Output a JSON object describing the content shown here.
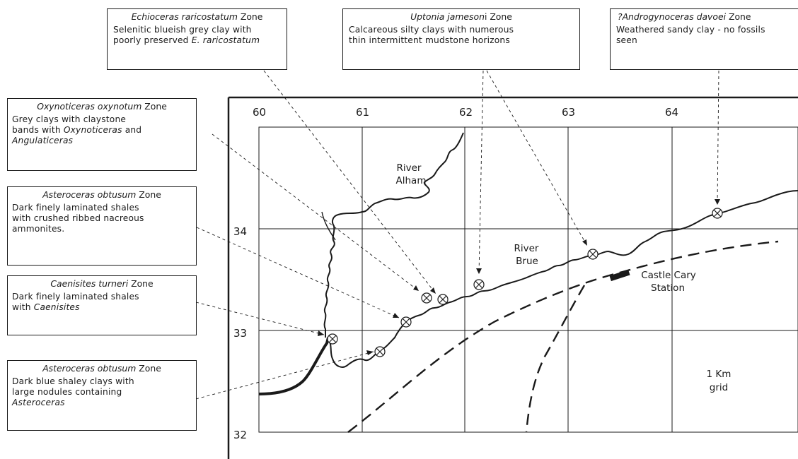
{
  "zones": {
    "raricostatum": {
      "genus": "Echioceras raricostatum",
      "suffix": " Zone",
      "desc_lines": [
        "Selenitic blueish grey clay with",
        "poorly preserved "
      ],
      "desc_italic": "E. raricostatum"
    },
    "jamesoni": {
      "genus": "Uptonia jameson",
      "suffix": "i Zone",
      "desc_lines": [
        "Calcareous silty clays with numerous",
        "thin intermittent mudstone horizons"
      ]
    },
    "davoei": {
      "genus": "?Androgynoceras davoei",
      "suffix": " Zone",
      "desc_lines": [
        "Weathered sandy clay - no fossils",
        "seen"
      ]
    },
    "oxynotum": {
      "genus": "Oxynoticeras oxynotum",
      "suffix": " Zone",
      "desc_lines": [
        "Grey clays with claystone",
        "bands with "
      ],
      "desc_italic1": "Oxynoticeras",
      "desc_mid": " and",
      "desc_italic2": "Angulaticeras"
    },
    "obtusum_upper": {
      "genus": "Asteroceras obtusum",
      "suffix": " Zone",
      "desc_lines": [
        "Dark finely laminated shales",
        "with crushed ribbed nacreous",
        "ammonites."
      ]
    },
    "turneri": {
      "genus": "Caenisites turneri",
      "suffix": " Zone",
      "desc_lines": [
        "Dark finely laminated shales",
        "with "
      ],
      "desc_italic": "Caenisites"
    },
    "obtusum_lower": {
      "genus": "Asteroceras obtusum",
      "suffix": " Zone",
      "desc_lines": [
        "Dark blue shaley clays with",
        "large nodules containing"
      ],
      "desc_italic": "Asteroceras"
    }
  },
  "map": {
    "eastings": [
      "60",
      "61",
      "62",
      "63",
      "64"
    ],
    "northings": [
      "34",
      "33",
      "32"
    ],
    "labels": {
      "alham_1": "River",
      "alham_2": "Alham",
      "brue_1": "River",
      "brue_2": "Brue",
      "station_1": "Castle Cary",
      "station_2": "Station",
      "grid_1": "1 Km",
      "grid_2": "grid"
    }
  },
  "colors": {
    "ink": "#1a1a1a",
    "paper": "#ffffff"
  }
}
